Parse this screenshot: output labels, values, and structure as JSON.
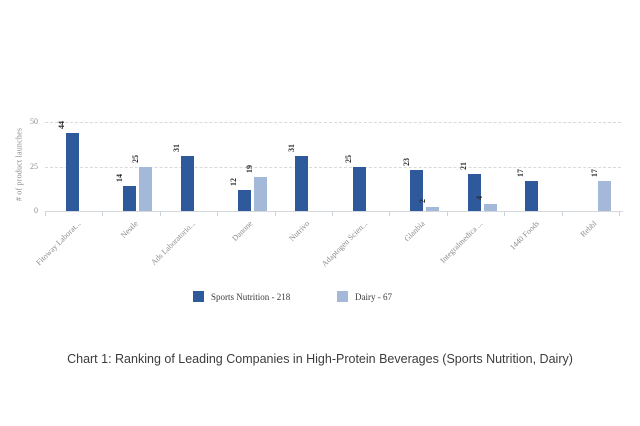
{
  "caption": "Chart 1: Ranking of Leading Companies in High-Protein Beverages (Sports Nutrition, Dairy)",
  "chart_data": {
    "type": "bar",
    "title": "",
    "categories": [
      "Fitoway Laborat...",
      "Nestle",
      "Ads Laboratorio...",
      "Danone",
      "Nutrivo",
      "Adaptogen Scien...",
      "Glanbia",
      "Integralmedica ...",
      "1440 Foods",
      "Rebbl"
    ],
    "series": [
      {
        "name": "Sports Nutrition - 218",
        "color": "#2e5a9c",
        "values": [
          44,
          14,
          31,
          12,
          31,
          25,
          23,
          21,
          17,
          null
        ]
      },
      {
        "name": "Dairy - 67",
        "color": "#a4b8da",
        "values": [
          null,
          25,
          null,
          19,
          null,
          null,
          2,
          4,
          null,
          17
        ]
      }
    ],
    "ylabel": "# of product launches",
    "xlabel": "",
    "yticks": [
      0,
      25,
      50
    ],
    "ylim": [
      0,
      50
    ],
    "grid": "horizontal-dashed",
    "legend_position": "bottom",
    "value_label_rotation": -90,
    "x_tick_label_angle": -45
  }
}
